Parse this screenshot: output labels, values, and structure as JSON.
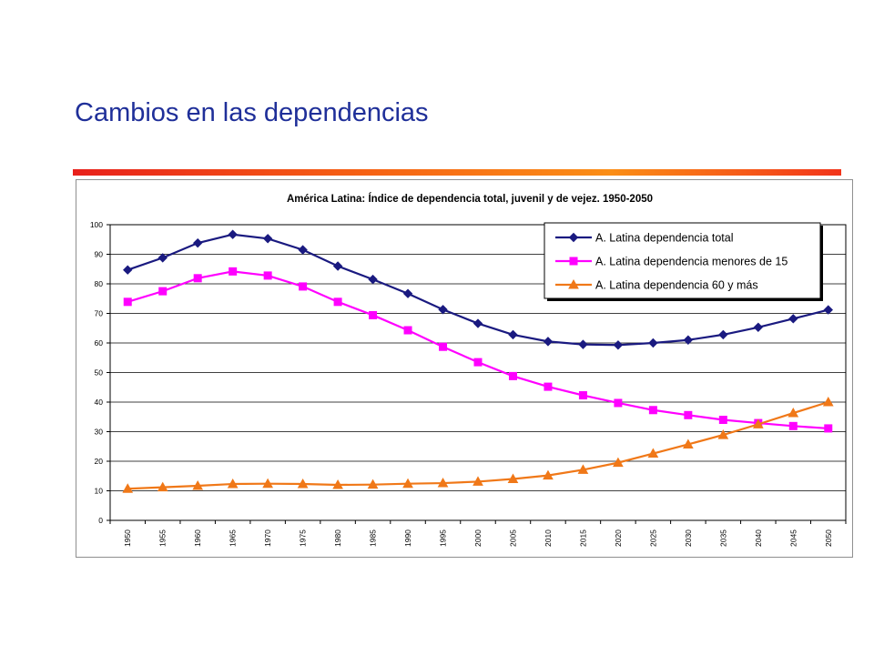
{
  "slide": {
    "title": "Cambios en las dependencias",
    "accent_colors": [
      "#e8201b",
      "#fb8e16"
    ]
  },
  "chart_data": {
    "type": "line",
    "title": "América Latina: Índice de dependencia total, juvenil y de vejez. 1950-2050",
    "xlabel": "",
    "ylabel": "",
    "ylim": [
      0,
      100
    ],
    "yticks": [
      0,
      10,
      20,
      30,
      40,
      50,
      60,
      70,
      80,
      90,
      100
    ],
    "grid": true,
    "legend_position": "top-right",
    "x": [
      "1950",
      "1955",
      "1960",
      "1965",
      "1970",
      "1975",
      "1980",
      "1985",
      "1990",
      "1995",
      "2000",
      "2005",
      "2010",
      "2015",
      "2020",
      "2025",
      "2030",
      "2035",
      "2040",
      "2045",
      "2050"
    ],
    "series": [
      {
        "name": "A. Latina dependencia total",
        "color": "#1a1a80",
        "marker": "diamond",
        "values": [
          84.7,
          88.8,
          93.8,
          96.7,
          95.3,
          91.5,
          86.0,
          81.5,
          76.7,
          71.3,
          66.6,
          62.8,
          60.5,
          59.5,
          59.3,
          60.0,
          61.0,
          62.8,
          65.3,
          68.2,
          71.2
        ]
      },
      {
        "name": "A. Latina dependencia menores de 15",
        "color": "#ff00ff",
        "marker": "square",
        "values": [
          73.9,
          77.5,
          81.9,
          84.2,
          82.8,
          79.1,
          73.9,
          69.4,
          64.3,
          58.7,
          53.5,
          48.8,
          45.2,
          42.3,
          39.7,
          37.3,
          35.6,
          34.0,
          32.9,
          31.9,
          31.1
        ]
      },
      {
        "name": "A. Latina dependencia 60 y más",
        "color": "#f07818",
        "marker": "triangle",
        "values": [
          10.7,
          11.2,
          11.7,
          12.3,
          12.4,
          12.3,
          12.0,
          12.1,
          12.4,
          12.6,
          13.1,
          14.0,
          15.2,
          17.1,
          19.5,
          22.6,
          25.7,
          28.9,
          32.5,
          36.3,
          40.0
        ]
      }
    ]
  }
}
